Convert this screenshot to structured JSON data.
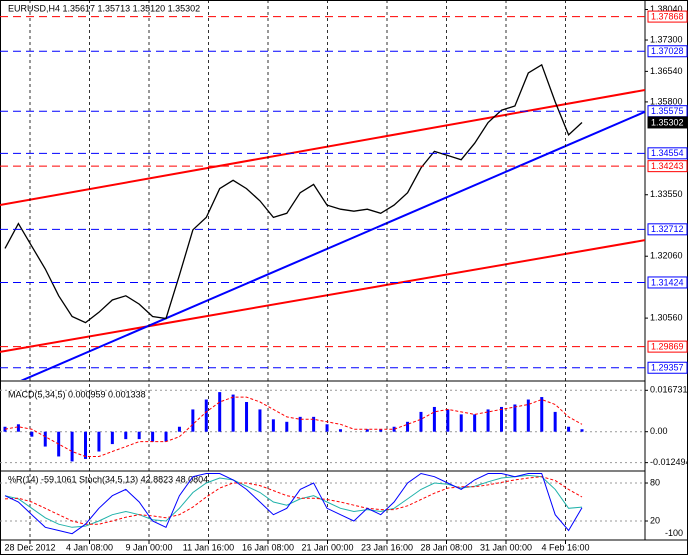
{
  "chart_data": [
    {
      "type": "line",
      "title": "EURUSD,H4 1.35617 1.35713 1.35120 1.35302",
      "x_labels": [
        "28 Dec 2012",
        "4 Jan 08:00",
        "9 Jan 00:00",
        "11 Jan 16:00",
        "16 Jan 08:00",
        "21 Jan 00:00",
        "23 Jan 16:00",
        "28 Jan 08:00",
        "31 Jan 00:00",
        "4 Feb 16:00"
      ],
      "series": [
        {
          "color": "#000000",
          "values": [
            1.3225,
            1.3285,
            1.323,
            1.3175,
            1.311,
            1.306,
            1.3045,
            1.307,
            1.31,
            1.311,
            1.309,
            1.306,
            1.3055,
            1.316,
            1.327,
            1.33,
            1.337,
            1.339,
            1.337,
            1.334,
            1.33,
            1.331,
            1.336,
            1.338,
            1.333,
            1.332,
            1.3315,
            1.332,
            1.331,
            1.333,
            1.336,
            1.342,
            1.346,
            1.345,
            1.344,
            1.348,
            1.353,
            1.356,
            1.357,
            1.365,
            1.367,
            1.358,
            1.35,
            1.353
          ]
        }
      ],
      "ylim": [
        1.2906,
        1.3827
      ],
      "yticks": [
        {
          "value": 1.3804,
          "label": "1.38040"
        },
        {
          "value": 1.373,
          "label": "1.37300"
        },
        {
          "value": 1.3654,
          "label": "1.36540"
        },
        {
          "value": 1.358,
          "label": "1.35800"
        },
        {
          "value": 1.3355,
          "label": "1.33550"
        },
        {
          "value": 1.3206,
          "label": "1.32060"
        },
        {
          "value": 1.3056,
          "label": "1.30560"
        }
      ],
      "levels": [
        {
          "value": 1.37868,
          "color": "#ff0000"
        },
        {
          "value": 1.37028,
          "color": "#0000ff"
        },
        {
          "value": 1.35575,
          "color": "#0000ff"
        },
        {
          "value": 1.35302,
          "color": "#000000"
        },
        {
          "value": 1.34554,
          "color": "#0000ff"
        },
        {
          "value": 1.34243,
          "color": "#ff0000"
        },
        {
          "value": 1.32712,
          "color": "#0000ff"
        },
        {
          "value": 1.31424,
          "color": "#0000ff"
        },
        {
          "value": 1.29869,
          "color": "#ff0000"
        },
        {
          "value": 1.29357,
          "color": "#0000ff"
        }
      ],
      "trend_lines": [
        {
          "color": "#ff0000",
          "values": [
            1.333,
            1.3609
          ]
        },
        {
          "color": "#ff0000",
          "values": [
            1.2974,
            1.3245
          ]
        },
        {
          "color": "#0000ff",
          "values": [
            1.2882,
            1.3556
          ]
        }
      ]
    },
    {
      "type": "bar",
      "title": "MACD(5,34,5) 0.000959 0.001338",
      "series": [
        {
          "color": "#0000ff",
          "values": [
            0.002,
            0.003,
            -0.002,
            -0.006,
            -0.01,
            -0.012,
            -0.011,
            -0.008,
            -0.005,
            -0.003,
            -0.003,
            -0.004,
            -0.004,
            0.002,
            0.009,
            0.013,
            0.016,
            0.015,
            0.012,
            0.009,
            0.005,
            0.004,
            0.006,
            0.006,
            0.003,
            0.001,
            0.0,
            0.001,
            0.001,
            0.002,
            0.004,
            0.008,
            0.01,
            0.009,
            0.007,
            0.007,
            0.009,
            0.01,
            0.011,
            0.013,
            0.014,
            0.008,
            0.002,
            0.001
          ]
        },
        {
          "color": "#ff0000",
          "dashed": true,
          "values": [
            0.001,
            0.002,
            0.001,
            -0.002,
            -0.005,
            -0.008,
            -0.01,
            -0.01,
            -0.008,
            -0.006,
            -0.004,
            -0.004,
            -0.004,
            -0.002,
            0.003,
            0.008,
            0.012,
            0.014,
            0.014,
            0.012,
            0.009,
            0.006,
            0.005,
            0.005,
            0.004,
            0.003,
            0.001,
            0.001,
            0.001,
            0.001,
            0.003,
            0.005,
            0.008,
            0.009,
            0.008,
            0.007,
            0.008,
            0.009,
            0.01,
            0.011,
            0.013,
            0.011,
            0.006,
            0.003
          ]
        }
      ],
      "ylim": [
        -0.01547,
        0.02008
      ],
      "yticks": [
        0.016731,
        {
          "value": 0,
          "label": "0.00"
        },
        {
          "value": -0.012494,
          "label": "-0.012494"
        }
      ]
    },
    {
      "type": "line",
      "title": "%R(14) -59.1061 Stoch(34,5,13) 42.8823 48.0804",
      "series": [
        {
          "color": "#20b2aa",
          "values": [
            60,
            55,
            40,
            25,
            15,
            10,
            12,
            20,
            30,
            35,
            30,
            22,
            20,
            40,
            65,
            80,
            88,
            85,
            75,
            65,
            50,
            45,
            55,
            60,
            50,
            40,
            35,
            38,
            35,
            40,
            55,
            70,
            80,
            78,
            72,
            75,
            82,
            88,
            90,
            92,
            90,
            70,
            40,
            42
          ]
        },
        {
          "color": "#ff0000",
          "dashed": true,
          "values": [
            55,
            56,
            50,
            40,
            30,
            20,
            15,
            15,
            20,
            26,
            30,
            28,
            25,
            30,
            42,
            58,
            72,
            80,
            80,
            76,
            68,
            60,
            56,
            56,
            54,
            50,
            45,
            40,
            38,
            38,
            44,
            54,
            64,
            72,
            74,
            74,
            77,
            81,
            85,
            88,
            90,
            84,
            70,
            58
          ]
        },
        {
          "color": "#0000ff",
          "axis": "y2",
          "values": [
            -40,
            -50,
            -70,
            -90,
            -95,
            -100,
            -85,
            -60,
            -40,
            -30,
            -50,
            -80,
            -90,
            -40,
            -10,
            -5,
            -5,
            -15,
            -30,
            -50,
            -70,
            -60,
            -30,
            -20,
            -60,
            -70,
            -80,
            -60,
            -70,
            -50,
            -20,
            -5,
            -10,
            -20,
            -30,
            -15,
            -5,
            -5,
            -10,
            -5,
            -5,
            -70,
            -95,
            -59
          ]
        }
      ],
      "ylim": [
        -8.4,
        97.4
      ],
      "yticks": [
        80,
        20
      ],
      "y2lim": [
        -108.4,
        -2.6
      ],
      "y2ticks": [
        -100
      ]
    }
  ]
}
